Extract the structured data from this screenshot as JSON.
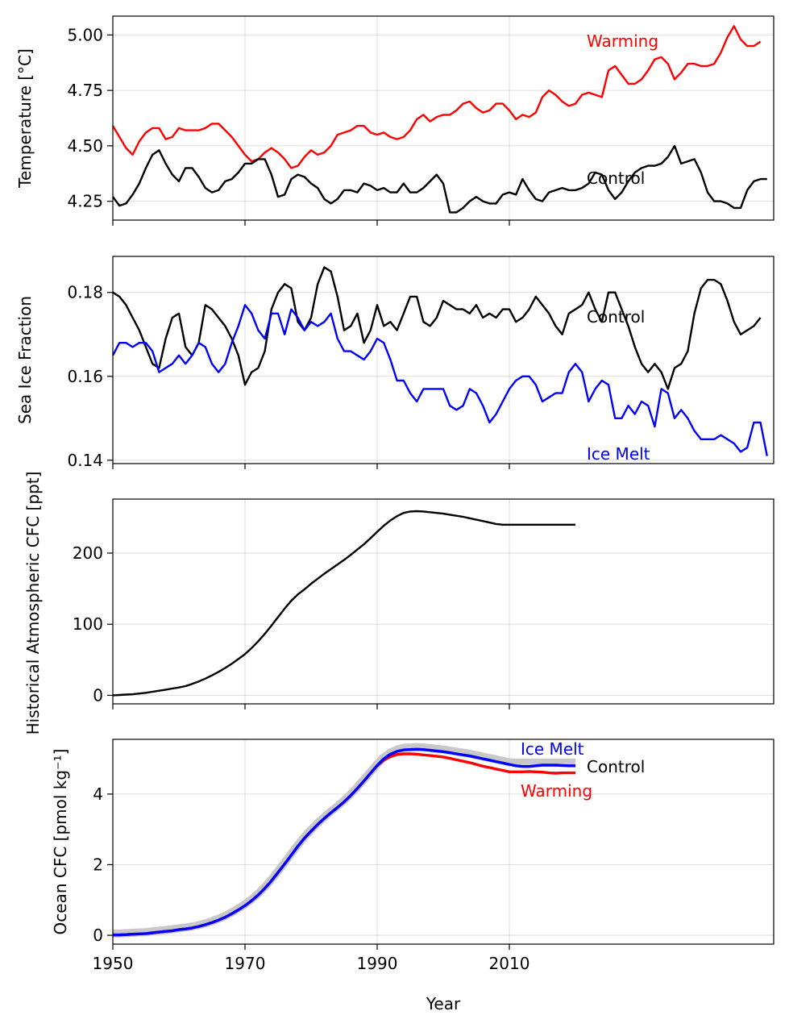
{
  "chart_data": [
    {
      "type": "line",
      "ylabel": "Temperature [°C]",
      "xlim": [
        1950,
        2050
      ],
      "ylim": [
        4.165,
        5.085
      ],
      "xticks": [
        1950,
        1970,
        1990,
        2010
      ],
      "yticks": [
        4.25,
        4.5,
        4.75,
        5.0
      ],
      "ytick_labels": [
        "4.25",
        "4.50",
        "4.75",
        "5.00"
      ],
      "grid": true,
      "x_start": 1950,
      "series": [
        {
          "name": "Warming",
          "color": "#ff0000",
          "values": [
            4.59,
            4.54,
            4.49,
            4.46,
            4.52,
            4.56,
            4.58,
            4.58,
            4.53,
            4.54,
            4.58,
            4.57,
            4.57,
            4.57,
            4.58,
            4.6,
            4.6,
            4.57,
            4.54,
            4.5,
            4.46,
            4.43,
            4.44,
            4.47,
            4.49,
            4.47,
            4.44,
            4.4,
            4.41,
            4.45,
            4.48,
            4.46,
            4.47,
            4.5,
            4.55,
            4.56,
            4.57,
            4.59,
            4.59,
            4.56,
            4.55,
            4.56,
            4.54,
            4.53,
            4.54,
            4.57,
            4.62,
            4.64,
            4.61,
            4.63,
            4.64,
            4.64,
            4.66,
            4.69,
            4.7,
            4.67,
            4.65,
            4.66,
            4.69,
            4.69,
            4.66,
            4.62,
            4.64,
            4.63,
            4.65,
            4.72,
            4.75,
            4.73,
            4.7,
            4.68,
            4.69,
            4.73,
            4.74,
            4.73,
            4.72,
            4.84,
            4.86,
            4.82,
            4.78,
            4.78,
            4.8,
            4.84,
            4.89,
            4.9,
            4.87,
            4.8,
            4.83,
            4.87,
            4.87,
            4.86,
            4.86,
            4.87,
            4.92,
            4.99,
            5.04,
            4.98,
            4.95,
            4.95,
            4.97
          ]
        },
        {
          "name": "Control",
          "color": "#000000",
          "values": [
            4.27,
            4.23,
            4.24,
            4.28,
            4.33,
            4.4,
            4.46,
            4.48,
            4.42,
            4.37,
            4.34,
            4.4,
            4.4,
            4.36,
            4.31,
            4.29,
            4.3,
            4.34,
            4.35,
            4.38,
            4.42,
            4.42,
            4.44,
            4.44,
            4.37,
            4.27,
            4.28,
            4.35,
            4.37,
            4.36,
            4.33,
            4.31,
            4.26,
            4.24,
            4.26,
            4.3,
            4.3,
            4.29,
            4.33,
            4.32,
            4.3,
            4.31,
            4.29,
            4.29,
            4.33,
            4.29,
            4.29,
            4.31,
            4.34,
            4.37,
            4.33,
            4.2,
            4.2,
            4.22,
            4.25,
            4.27,
            4.25,
            4.24,
            4.24,
            4.28,
            4.29,
            4.28,
            4.35,
            4.3,
            4.26,
            4.25,
            4.29,
            4.3,
            4.31,
            4.3,
            4.3,
            4.31,
            4.33,
            4.38,
            4.37,
            4.3,
            4.26,
            4.29,
            4.34,
            4.38,
            4.4,
            4.41,
            4.41,
            4.42,
            4.45,
            4.5,
            4.42,
            4.43,
            4.44,
            4.38,
            4.29,
            4.25,
            4.25,
            4.24,
            4.22,
            4.22,
            4.3,
            4.34,
            4.35,
            4.35
          ]
        }
      ]
    },
    {
      "type": "line",
      "ylabel": "Sea Ice Fraction",
      "xlim": [
        1950,
        2050
      ],
      "ylim": [
        0.1392,
        0.1886
      ],
      "xticks": [
        1950,
        1970,
        1990,
        2010
      ],
      "yticks": [
        0.14,
        0.16,
        0.18
      ],
      "ytick_labels": [
        "0.14",
        "0.16",
        "0.18"
      ],
      "grid": true,
      "x_start": 1950,
      "series": [
        {
          "name": "Control",
          "color": "#000000",
          "values": [
            0.18,
            0.179,
            0.177,
            0.174,
            0.171,
            0.167,
            0.163,
            0.162,
            0.169,
            0.174,
            0.175,
            0.167,
            0.165,
            0.168,
            0.177,
            0.176,
            0.174,
            0.172,
            0.169,
            0.165,
            0.158,
            0.161,
            0.162,
            0.166,
            0.176,
            0.18,
            0.182,
            0.181,
            0.173,
            0.171,
            0.174,
            0.182,
            0.186,
            0.185,
            0.179,
            0.171,
            0.172,
            0.175,
            0.168,
            0.171,
            0.177,
            0.172,
            0.173,
            0.171,
            0.175,
            0.179,
            0.179,
            0.173,
            0.172,
            0.174,
            0.178,
            0.177,
            0.176,
            0.176,
            0.175,
            0.177,
            0.174,
            0.175,
            0.174,
            0.176,
            0.176,
            0.173,
            0.174,
            0.176,
            0.179,
            0.177,
            0.175,
            0.172,
            0.17,
            0.175,
            0.176,
            0.177,
            0.18,
            0.176,
            0.173,
            0.18,
            0.18,
            0.176,
            0.172,
            0.167,
            0.163,
            0.161,
            0.163,
            0.161,
            0.157,
            0.162,
            0.163,
            0.166,
            0.175,
            0.181,
            0.183,
            0.183,
            0.182,
            0.178,
            0.173,
            0.17,
            0.171,
            0.172,
            0.174
          ]
        },
        {
          "name": "Ice Melt",
          "color": "#0000ff",
          "values": [
            0.165,
            0.168,
            0.168,
            0.167,
            0.168,
            0.168,
            0.166,
            0.161,
            0.162,
            0.163,
            0.165,
            0.163,
            0.165,
            0.168,
            0.167,
            0.163,
            0.161,
            0.163,
            0.168,
            0.172,
            0.177,
            0.175,
            0.171,
            0.169,
            0.175,
            0.175,
            0.17,
            0.176,
            0.174,
            0.171,
            0.173,
            0.172,
            0.173,
            0.175,
            0.169,
            0.166,
            0.166,
            0.165,
            0.164,
            0.166,
            0.169,
            0.168,
            0.164,
            0.159,
            0.159,
            0.156,
            0.154,
            0.157,
            0.157,
            0.157,
            0.157,
            0.153,
            0.152,
            0.153,
            0.157,
            0.156,
            0.153,
            0.149,
            0.151,
            0.154,
            0.157,
            0.159,
            0.16,
            0.16,
            0.158,
            0.154,
            0.155,
            0.156,
            0.156,
            0.161,
            0.163,
            0.161,
            0.154,
            0.157,
            0.159,
            0.158,
            0.15,
            0.15,
            0.153,
            0.151,
            0.154,
            0.153,
            0.148,
            0.157,
            0.156,
            0.15,
            0.152,
            0.15,
            0.147,
            0.145,
            0.145,
            0.145,
            0.146,
            0.145,
            0.144,
            0.142,
            0.143,
            0.149,
            0.149,
            0.141
          ]
        }
      ]
    },
    {
      "type": "line",
      "ylabel": "Historical Atmospheric CFC [ppt]",
      "xlim": [
        1950,
        2050
      ],
      "ylim": [
        -12,
        276
      ],
      "xticks": [
        1950,
        1970,
        1990,
        2010
      ],
      "yticks": [
        0,
        100,
        200
      ],
      "ytick_labels": [
        "0",
        "100",
        "200"
      ],
      "grid": true,
      "x_start": 1950,
      "series": [
        {
          "name": "",
          "color": "#000000",
          "values": [
            0,
            0.5,
            1,
            1.5,
            2.5,
            3.5,
            5,
            6.5,
            8,
            9.5,
            11,
            13,
            16,
            19.5,
            23.5,
            28,
            33,
            38.5,
            44.5,
            51,
            58,
            66.5,
            76,
            86.5,
            98,
            110,
            122,
            133,
            142,
            149,
            157,
            164,
            171,
            177.5,
            184,
            190.5,
            197.5,
            205,
            212.5,
            221,
            230,
            238.5,
            246,
            252,
            256.5,
            258.5,
            259,
            258.5,
            257.5,
            256.5,
            255.5,
            254,
            252.5,
            251,
            249,
            247,
            245,
            243,
            241,
            240,
            240,
            240,
            240,
            240,
            240,
            240,
            240,
            240,
            240,
            240,
            240
          ]
        }
      ]
    },
    {
      "type": "line",
      "xlabel": "Year",
      "ylabel": "Ocean CFC [pmol kg⁻¹]",
      "xlim": [
        1950,
        2050
      ],
      "ylim": [
        -0.25,
        5.55
      ],
      "xticks": [
        1950,
        1970,
        1990,
        2010
      ],
      "xtick_labels": [
        "1950",
        "1970",
        "1990",
        "2010"
      ],
      "yticks": [
        0,
        2,
        4
      ],
      "ytick_labels": [
        "0",
        "2",
        "4"
      ],
      "grid": true,
      "x_start": 1950,
      "series": [
        {
          "name": "Control",
          "color": "#c8c8c8",
          "values": [
            0.05,
            0.05,
            0.06,
            0.07,
            0.08,
            0.09,
            0.11,
            0.13,
            0.15,
            0.17,
            0.2,
            0.22,
            0.25,
            0.29,
            0.34,
            0.4,
            0.47,
            0.55,
            0.65,
            0.76,
            0.88,
            1.02,
            1.18,
            1.37,
            1.58,
            1.82,
            2.06,
            2.31,
            2.56,
            2.79,
            2.99,
            3.18,
            3.35,
            3.51,
            3.66,
            3.82,
            4.0,
            4.2,
            4.41,
            4.63,
            4.85,
            5.04,
            5.17,
            5.26,
            5.31,
            5.32,
            5.33,
            5.32,
            5.3,
            5.28,
            5.26,
            5.23,
            5.2,
            5.17,
            5.14,
            5.1,
            5.06,
            5.02,
            4.98,
            4.94,
            4.9,
            4.89,
            4.89,
            4.89,
            4.89,
            4.89,
            4.89,
            4.89,
            4.89,
            4.89,
            4.89
          ]
        },
        {
          "name": "Warming",
          "color": "#ff0000",
          "values": [
            0.01,
            0.01,
            0.02,
            0.03,
            0.04,
            0.05,
            0.07,
            0.09,
            0.11,
            0.13,
            0.16,
            0.18,
            0.21,
            0.25,
            0.3,
            0.36,
            0.43,
            0.51,
            0.61,
            0.72,
            0.84,
            0.98,
            1.14,
            1.33,
            1.54,
            1.78,
            2.02,
            2.27,
            2.52,
            2.75,
            2.95,
            3.14,
            3.31,
            3.47,
            3.62,
            3.78,
            3.96,
            4.16,
            4.37,
            4.59,
            4.8,
            4.96,
            5.06,
            5.12,
            5.14,
            5.14,
            5.13,
            5.11,
            5.09,
            5.07,
            5.05,
            5.01,
            4.97,
            4.93,
            4.89,
            4.84,
            4.79,
            4.75,
            4.71,
            4.67,
            4.63,
            4.63,
            4.63,
            4.64,
            4.63,
            4.62,
            4.6,
            4.59,
            4.6,
            4.6,
            4.6
          ]
        },
        {
          "name": "Ice Melt",
          "color": "#0000ff",
          "values": [
            0.01,
            0.01,
            0.02,
            0.03,
            0.04,
            0.05,
            0.07,
            0.09,
            0.11,
            0.13,
            0.16,
            0.18,
            0.21,
            0.25,
            0.3,
            0.36,
            0.43,
            0.51,
            0.61,
            0.72,
            0.84,
            0.98,
            1.14,
            1.33,
            1.54,
            1.78,
            2.02,
            2.27,
            2.52,
            2.75,
            2.95,
            3.14,
            3.31,
            3.47,
            3.62,
            3.78,
            3.96,
            4.16,
            4.37,
            4.59,
            4.81,
            5.0,
            5.13,
            5.21,
            5.25,
            5.26,
            5.27,
            5.26,
            5.24,
            5.22,
            5.2,
            5.17,
            5.14,
            5.11,
            5.08,
            5.04,
            5.0,
            4.96,
            4.92,
            4.88,
            4.84,
            4.8,
            4.78,
            4.78,
            4.8,
            4.82,
            4.82,
            4.82,
            4.81,
            4.8,
            4.8
          ]
        }
      ]
    }
  ],
  "labels": {
    "p1": [
      "Warming",
      "Control"
    ],
    "p2": [
      "Control",
      "Ice Melt"
    ],
    "p4": [
      "Ice Melt",
      "Control",
      "Warming"
    ]
  }
}
